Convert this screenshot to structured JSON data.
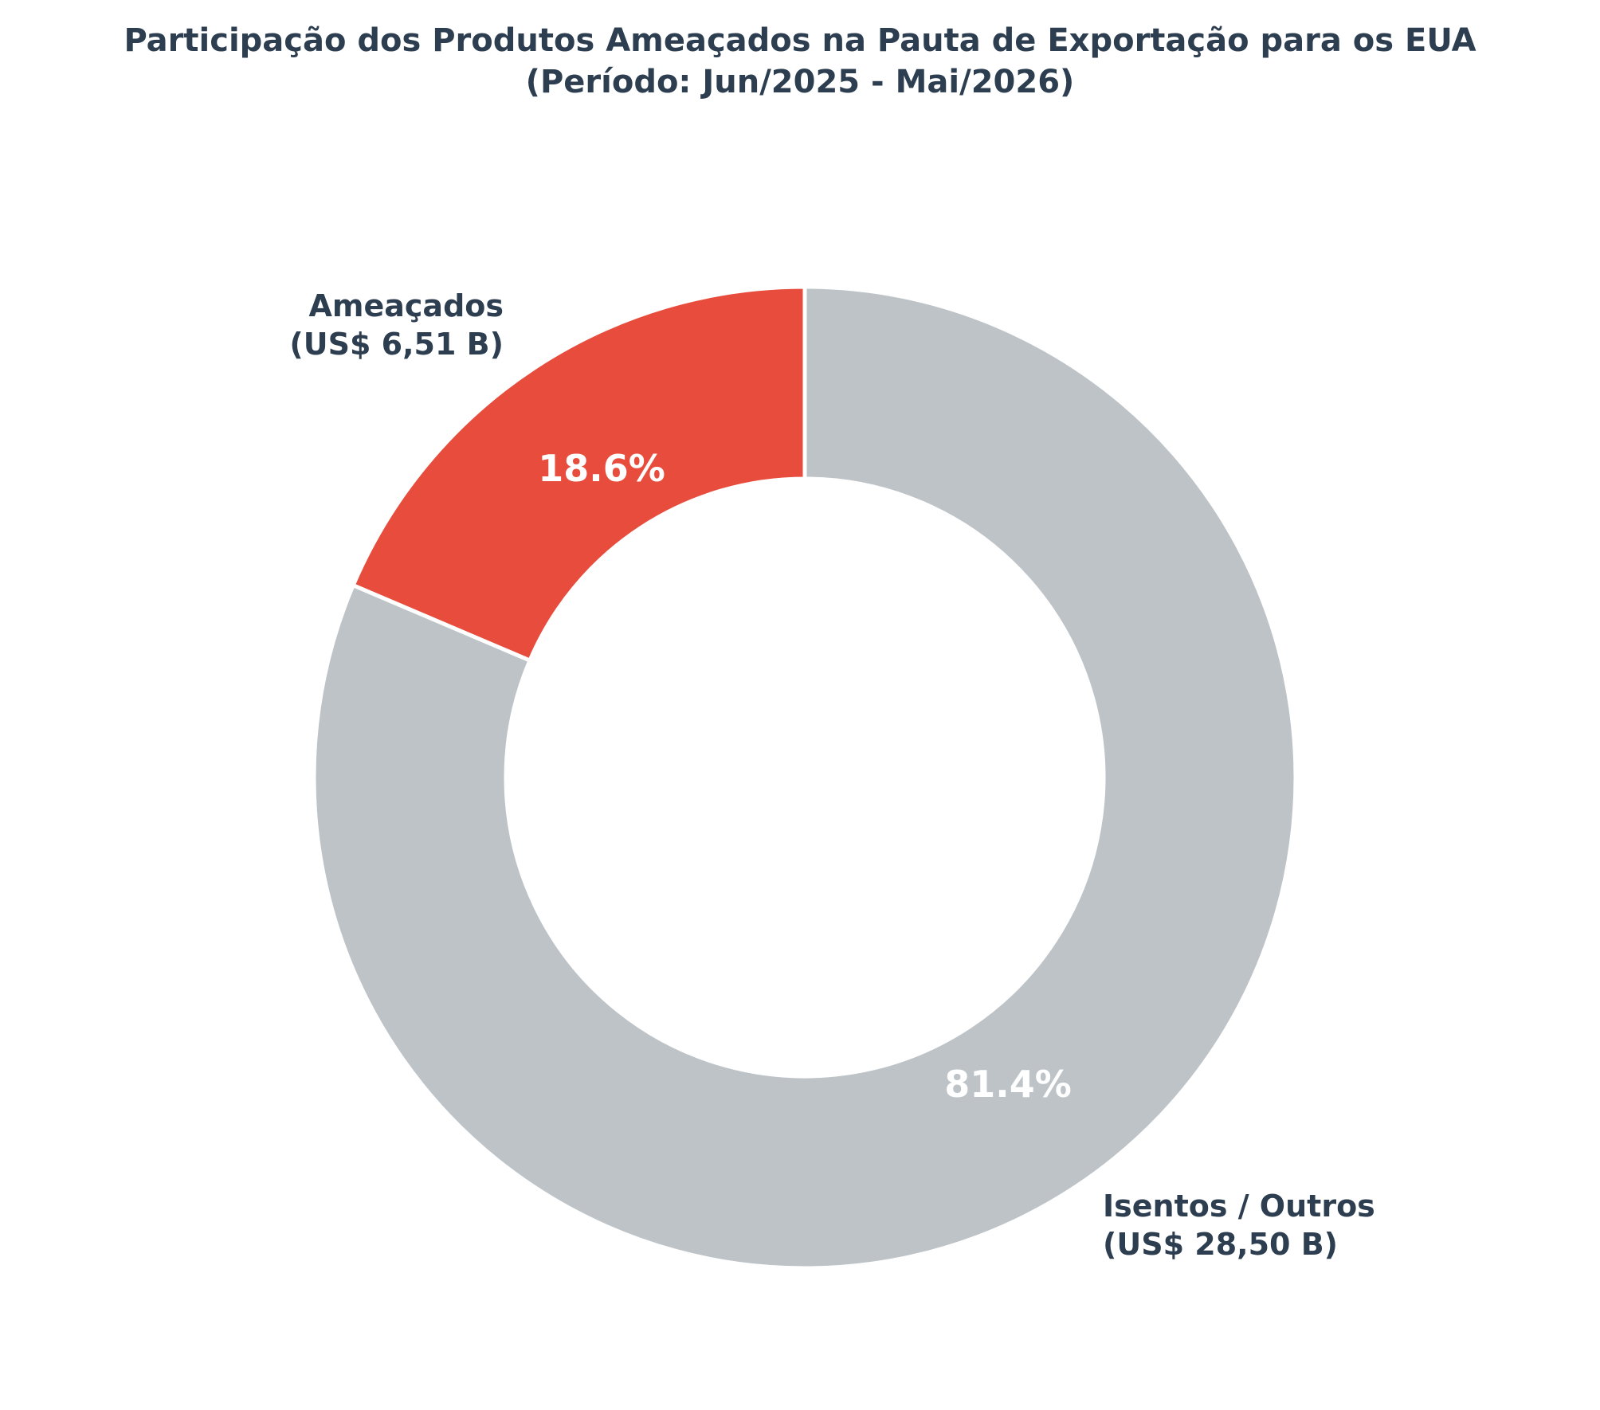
{
  "chart_data": {
    "type": "pie",
    "subtype": "donut",
    "title": "Participação dos Produtos Ameaçados na Pauta de Exportação para os EUA",
    "subtitle": "(Período: Jun/2025 - Mai/2026)",
    "slices": [
      {
        "key": "ameacados",
        "label": "Ameaçados",
        "value_label": "(US$ 6,51 B)",
        "value": 6.51,
        "unit": "US$ B",
        "percent_label": "18.6%",
        "color": "#e74c3c"
      },
      {
        "key": "isentos",
        "label": "Isentos / Outros",
        "value_label": "(US$ 28,50 B)",
        "value": 28.5,
        "unit": "US$ B",
        "percent_label": "81.4%",
        "color": "#bdc3c7"
      }
    ],
    "legend": "none"
  },
  "colors": {
    "text": "#2c3e50",
    "percent_text": "#ffffff",
    "slice_edge": "#ffffff",
    "background": "#ffffff"
  }
}
